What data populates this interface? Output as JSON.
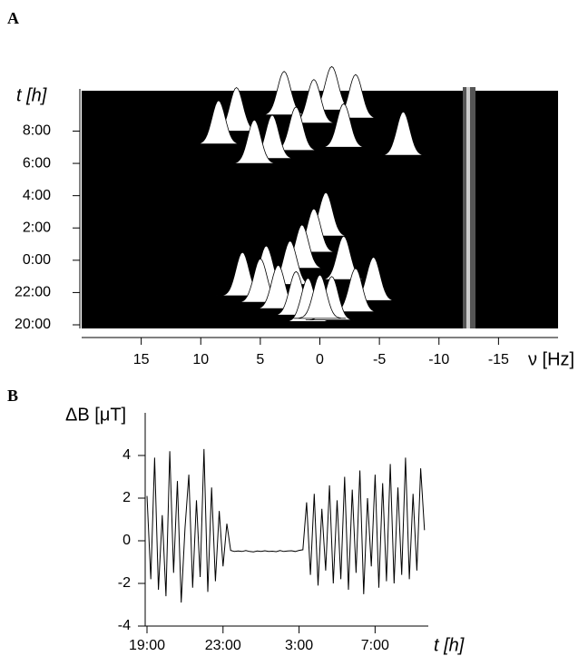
{
  "chart_data": [
    {
      "type": "waterfall",
      "panel": "A",
      "xlabel": "ν [Hz]",
      "ylabel": "t [h]",
      "xlim": [
        20,
        -20
      ],
      "xticks": [
        15,
        10,
        5,
        0,
        -5,
        -10,
        -15
      ],
      "ylim": [
        0,
        14.5
      ],
      "yticks": [
        {
          "value": 0,
          "label": "20:00"
        },
        {
          "value": 2,
          "label": "22:00"
        },
        {
          "value": 4,
          "label": "0:00"
        },
        {
          "value": 6,
          "label": "2:00"
        },
        {
          "value": 8,
          "label": "4:00"
        },
        {
          "value": 10,
          "label": "6:00"
        },
        {
          "value": 12,
          "label": "8:00"
        }
      ],
      "x": [
        -1,
        3,
        -3,
        0.5,
        7,
        8.5,
        2,
        -2,
        -7,
        4,
        5.5,
        -0.5,
        0.5,
        1.5,
        -2,
        2.5,
        4.5,
        6.5,
        -4.5,
        5,
        3.5,
        -3,
        2,
        1,
        -1,
        0
      ],
      "y": [
        13.3,
        13,
        12.8,
        12.5,
        12,
        11.2,
        10.8,
        11,
        10.5,
        10.3,
        10,
        5.5,
        4.5,
        3.5,
        2.8,
        2.5,
        2.2,
        1.8,
        1.5,
        1.4,
        1,
        0.8,
        0.6,
        0.2,
        0.3,
        0.4
      ]
    },
    {
      "type": "line",
      "panel": "B",
      "xlabel": "t [h]",
      "ylabel": "ΔB [μT]",
      "xlim": [
        0,
        14.8
      ],
      "xticks": [
        {
          "value": 0,
          "label": "19:00"
        },
        {
          "value": 4,
          "label": "23:00"
        },
        {
          "value": 8,
          "label": "3:00"
        },
        {
          "value": 12,
          "label": "7:00"
        }
      ],
      "ylim": [
        -4,
        6
      ],
      "yticks": [
        -4,
        -2,
        0,
        2,
        4
      ],
      "x": [
        0,
        0.2,
        0.4,
        0.6,
        0.8,
        1,
        1.2,
        1.4,
        1.6,
        1.8,
        2,
        2.2,
        2.4,
        2.6,
        2.8,
        3,
        3.2,
        3.4,
        3.6,
        3.8,
        4,
        4.2,
        4.4,
        4.6,
        4.8,
        5,
        5.2,
        5.4,
        5.6,
        5.8,
        6,
        6.2,
        6.4,
        6.6,
        6.8,
        7,
        7.2,
        7.4,
        7.6,
        7.8,
        8,
        8.2,
        8.4,
        8.6,
        8.8,
        9,
        9.2,
        9.4,
        9.6,
        9.8,
        10,
        10.2,
        10.4,
        10.6,
        10.8,
        11,
        11.2,
        11.4,
        11.6,
        11.8,
        12,
        12.2,
        12.4,
        12.6,
        12.8,
        13,
        13.2,
        13.4,
        13.6,
        13.8,
        14,
        14.2,
        14.4,
        14.6
      ],
      "values": [
        2.1,
        -1.8,
        3.9,
        -2.3,
        1.2,
        -2.6,
        4.2,
        -1.5,
        2.8,
        -2.9,
        0.6,
        3.1,
        -2.2,
        1.9,
        -1.7,
        4.3,
        -2.4,
        2.5,
        -1.9,
        1.4,
        -1.2,
        0.8,
        -0.45,
        -0.5,
        -0.48,
        -0.5,
        -0.46,
        -0.5,
        -0.52,
        -0.48,
        -0.5,
        -0.47,
        -0.5,
        -0.49,
        -0.51,
        -0.46,
        -0.5,
        -0.48,
        -0.47,
        -0.5,
        -0.45,
        -0.42,
        1.8,
        -1.6,
        2.2,
        -2.1,
        1.5,
        -1.4,
        2.6,
        -2.0,
        1.9,
        -1.8,
        3.0,
        -2.3,
        2.4,
        -1.5,
        3.3,
        -2.5,
        2.0,
        -1.2,
        3.1,
        -2.2,
        2.7,
        -1.9,
        3.6,
        -2.0,
        2.5,
        -1.6,
        3.9,
        -1.8,
        2.2,
        -1.4,
        3.4,
        0.5
      ],
      "color": "#000000"
    }
  ]
}
